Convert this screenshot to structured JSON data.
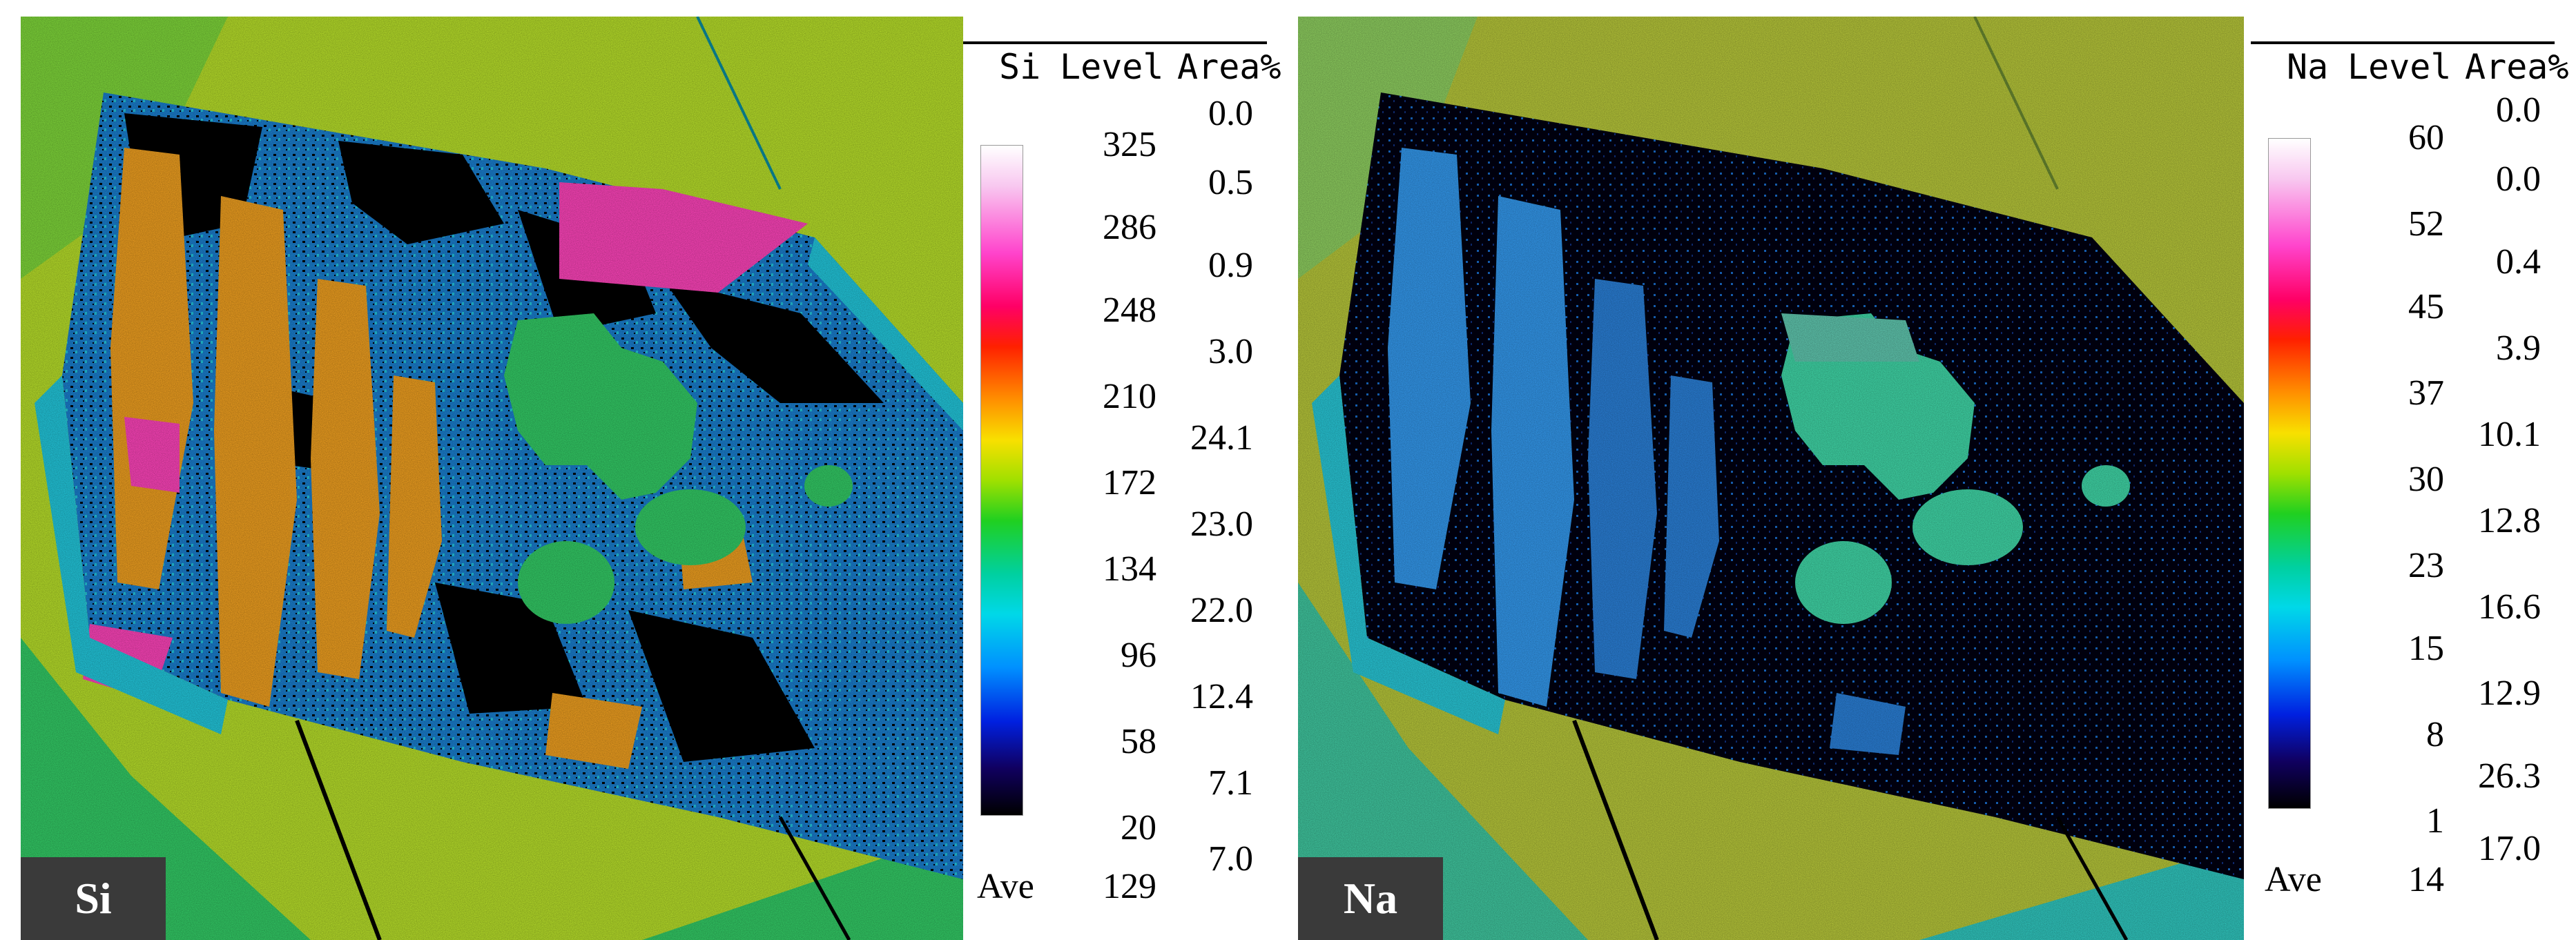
{
  "maps": [
    {
      "element": "Si",
      "legend": {
        "headers": {
          "element": "Si",
          "level": "Level",
          "area": "Area%"
        },
        "levels": [
          "325",
          "286",
          "248",
          "210",
          "172",
          "134",
          "96",
          "58",
          "20"
        ],
        "areas": [
          "0.0",
          "0.5",
          "0.9",
          "3.0",
          "24.1",
          "23.0",
          "22.0",
          "12.4",
          "7.1",
          "7.0"
        ],
        "ave_label": "Ave",
        "ave_value": "129"
      }
    },
    {
      "element": "Na",
      "legend": {
        "headers": {
          "element": "Na",
          "level": "Level",
          "area": "Area%"
        },
        "levels": [
          "60",
          "52",
          "45",
          "37",
          "30",
          "23",
          "15",
          "8",
          "1"
        ],
        "areas": [
          "0.0",
          "0.0",
          "0.4",
          "3.9",
          "10.1",
          "12.8",
          "16.6",
          "12.9",
          "26.3",
          "17.0"
        ],
        "ave_label": "Ave",
        "ave_value": "14"
      }
    }
  ],
  "colors": {
    "background_outside": "#b8e02a",
    "mineral_green": "#33cc66",
    "cyan": "#22c8dd",
    "black": "#000000",
    "orange": "#f0a020",
    "pink": "#ff44bb",
    "blue_na": "#3399ee"
  }
}
